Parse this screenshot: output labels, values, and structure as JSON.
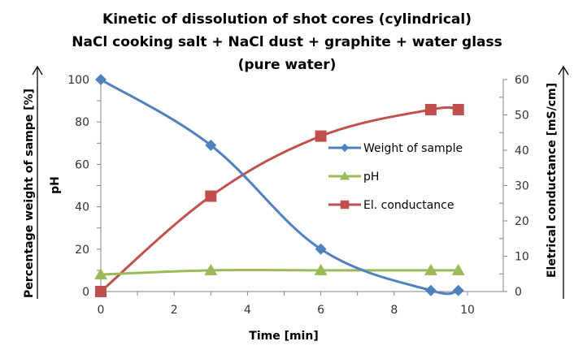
{
  "chart_data": {
    "type": "line",
    "title": [
      "Kinetic of dissolution of shot cores (cylindrical)",
      "NaCl cooking salt + NaCl dust + graphite + water glass",
      "(pure water)"
    ],
    "xlabel": "Time [min]",
    "ylabel_left": "Percentage weight of sampe [%]",
    "ylabel_left_inner": "pH",
    "ylabel_right": "Eletrical conductance [mS/cm]",
    "xlim": [
      0,
      10
    ],
    "ylim_left": [
      0,
      100
    ],
    "ylim_right": [
      0,
      60
    ],
    "x_ticks": [
      "0",
      "2",
      "4",
      "6",
      "8",
      "10"
    ],
    "y_left_ticks": [
      "0",
      "20",
      "40",
      "60",
      "80",
      "100"
    ],
    "y_right_ticks": [
      "0",
      "10",
      "20",
      "30",
      "40",
      "50",
      "60"
    ],
    "grid": false,
    "legend_position": "center-right",
    "series": [
      {
        "name": "Weight of sample",
        "axis": "left",
        "color": "#4F81BD",
        "marker": "diamond",
        "x": [
          0,
          3,
          6,
          9,
          9.75
        ],
        "values": [
          100,
          69,
          20,
          0.5,
          0.5
        ]
      },
      {
        "name": "pH",
        "axis": "left",
        "color": "#9BBB59",
        "marker": "triangle",
        "x": [
          0,
          3,
          6,
          9,
          9.75
        ],
        "values": [
          8,
          10,
          10,
          10,
          10
        ]
      },
      {
        "name": "El. conductance",
        "axis": "right",
        "color": "#C0504D",
        "marker": "square",
        "x": [
          0,
          3,
          6,
          9,
          9.75
        ],
        "values": [
          0,
          27,
          44,
          51.5,
          51.5
        ]
      }
    ]
  }
}
